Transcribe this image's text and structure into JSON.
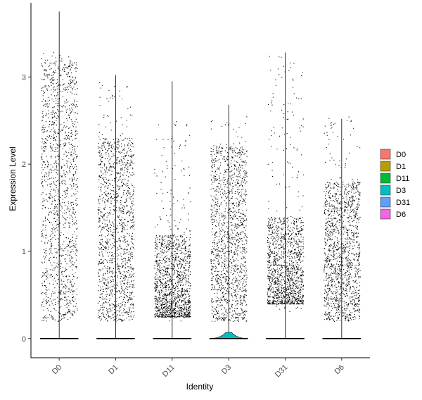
{
  "chart_data": {
    "type": "violin",
    "xlabel": "Identity",
    "ylabel": "Expression Level",
    "ylim": [
      -0.22,
      3.85
    ],
    "yticks": [
      0,
      1,
      2,
      3
    ],
    "grid": false,
    "legend_position": "right",
    "categories": [
      "D0",
      "D1",
      "D11",
      "D3",
      "D31",
      "D6"
    ],
    "colors": {
      "D0": "#F8766D",
      "D1": "#B79F00",
      "D11": "#00BA38",
      "D3": "#00BFC4",
      "D31": "#619CFF",
      "D6": "#F564E3"
    },
    "series": [
      {
        "name": "D0",
        "max": 3.75,
        "point_band": [
          0.2,
          3.3
        ],
        "dense_band": [
          0.2,
          3.2
        ]
      },
      {
        "name": "D1",
        "max": 3.02,
        "point_band": [
          0.2,
          2.95
        ],
        "dense_band": [
          0.2,
          2.3
        ]
      },
      {
        "name": "D11",
        "max": 2.95,
        "point_band": [
          0.2,
          2.5
        ],
        "dense_band": [
          0.25,
          1.2
        ]
      },
      {
        "name": "D3",
        "max": 2.68,
        "point_band": [
          0.2,
          2.55
        ],
        "dense_band": [
          0.2,
          2.2
        ]
      },
      {
        "name": "D31",
        "max": 3.28,
        "point_band": [
          0.3,
          3.25
        ],
        "dense_band": [
          0.4,
          1.4
        ]
      },
      {
        "name": "D6",
        "max": 2.52,
        "point_band": [
          0.2,
          2.55
        ],
        "dense_band": [
          0.2,
          1.8
        ]
      }
    ]
  }
}
